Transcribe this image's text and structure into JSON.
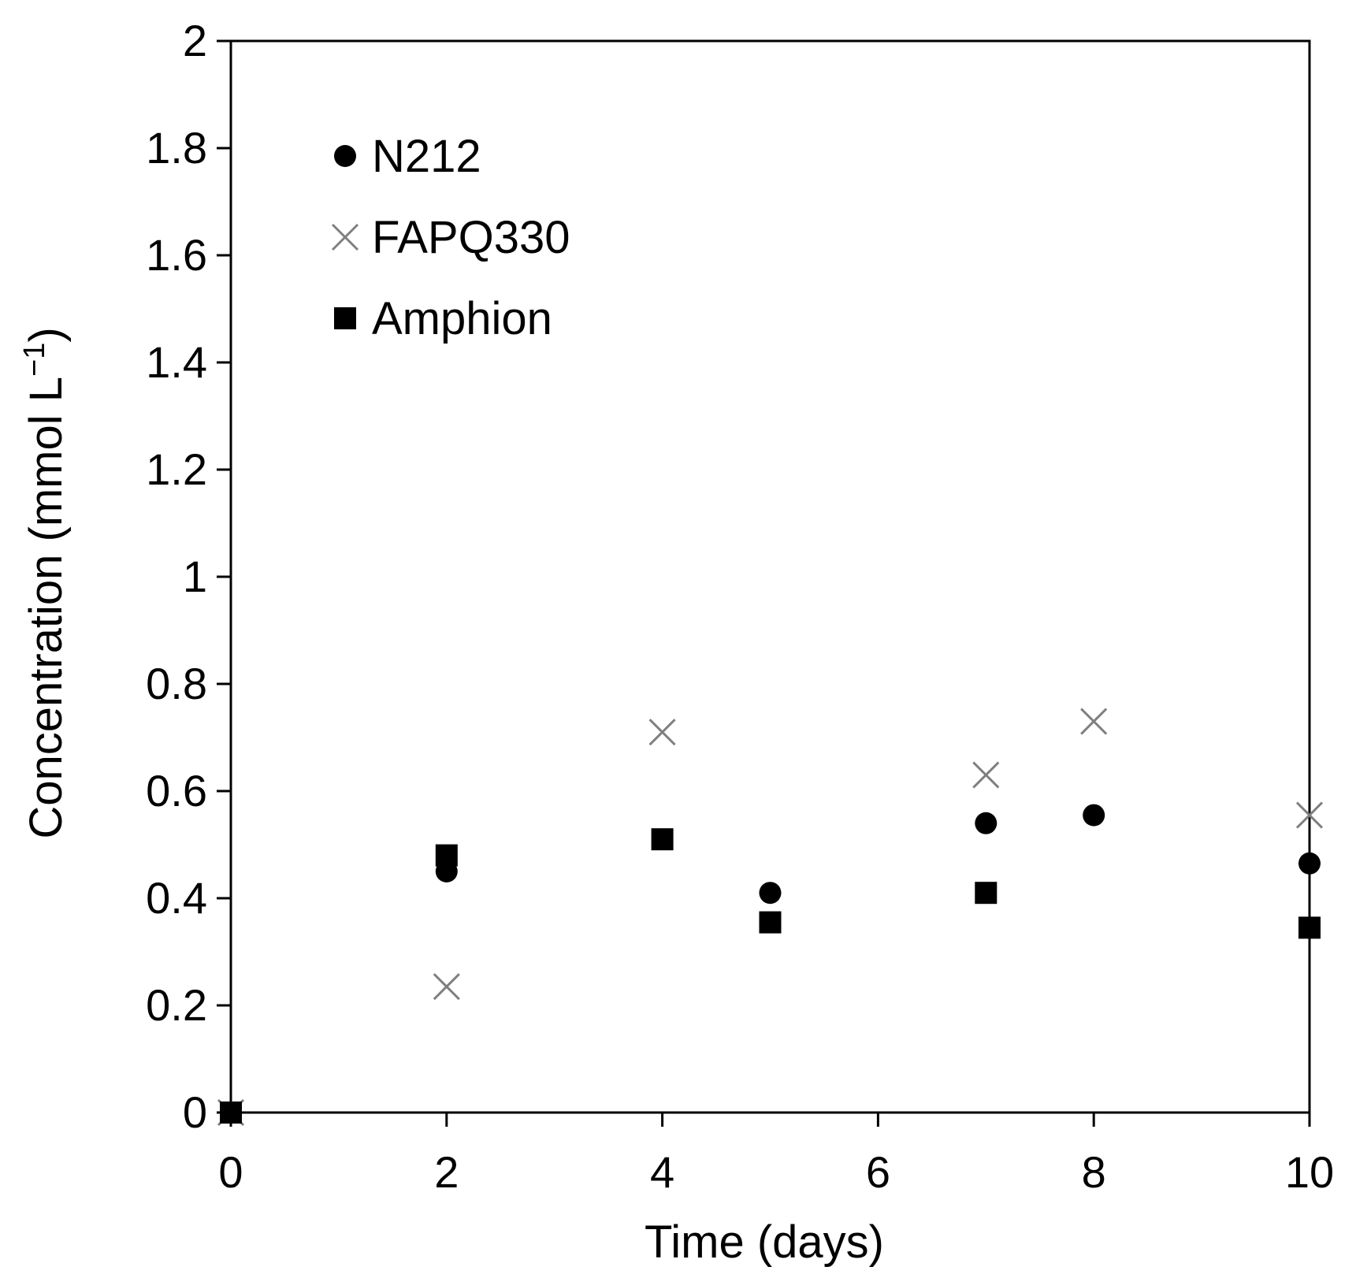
{
  "chart_data": {
    "type": "scatter",
    "title": "",
    "xlabel": "Time (days)",
    "ylabel_main": "Concentration (mmol L",
    "ylabel_sup": "−1",
    "ylabel_close": ")",
    "xlim": [
      0,
      10
    ],
    "ylim": [
      0,
      2
    ],
    "xticks": [
      0,
      2,
      4,
      6,
      8,
      10
    ],
    "xtick_labels": [
      "0",
      "2",
      "4",
      "6",
      "8",
      "10"
    ],
    "yticks": [
      0,
      0.2,
      0.4,
      0.6,
      0.8,
      1,
      1.2,
      1.4,
      1.6,
      1.8,
      2
    ],
    "ytick_labels": [
      "0",
      "0.2",
      "0.4",
      "0.6",
      "0.8",
      "1",
      "1.2",
      "1.4",
      "1.6",
      "1.8",
      "2"
    ],
    "grid": false,
    "legend_position": "top-left",
    "series": [
      {
        "name": "N212",
        "marker": "circle",
        "color": "#000000",
        "x": [
          0,
          2,
          5,
          7,
          8,
          10
        ],
        "y": [
          0,
          0.45,
          0.41,
          0.54,
          0.555,
          0.465
        ]
      },
      {
        "name": "FAPQ330",
        "marker": "x",
        "color": "#7f7f7f",
        "x": [
          0,
          2,
          4,
          7,
          8,
          10
        ],
        "y": [
          0,
          0.235,
          0.71,
          0.63,
          0.73,
          0.555
        ]
      },
      {
        "name": "Amphion",
        "marker": "square",
        "color": "#000000",
        "x": [
          0,
          2,
          4,
          5,
          7,
          10
        ],
        "y": [
          0,
          0.48,
          0.51,
          0.355,
          0.41,
          0.345
        ]
      }
    ]
  }
}
